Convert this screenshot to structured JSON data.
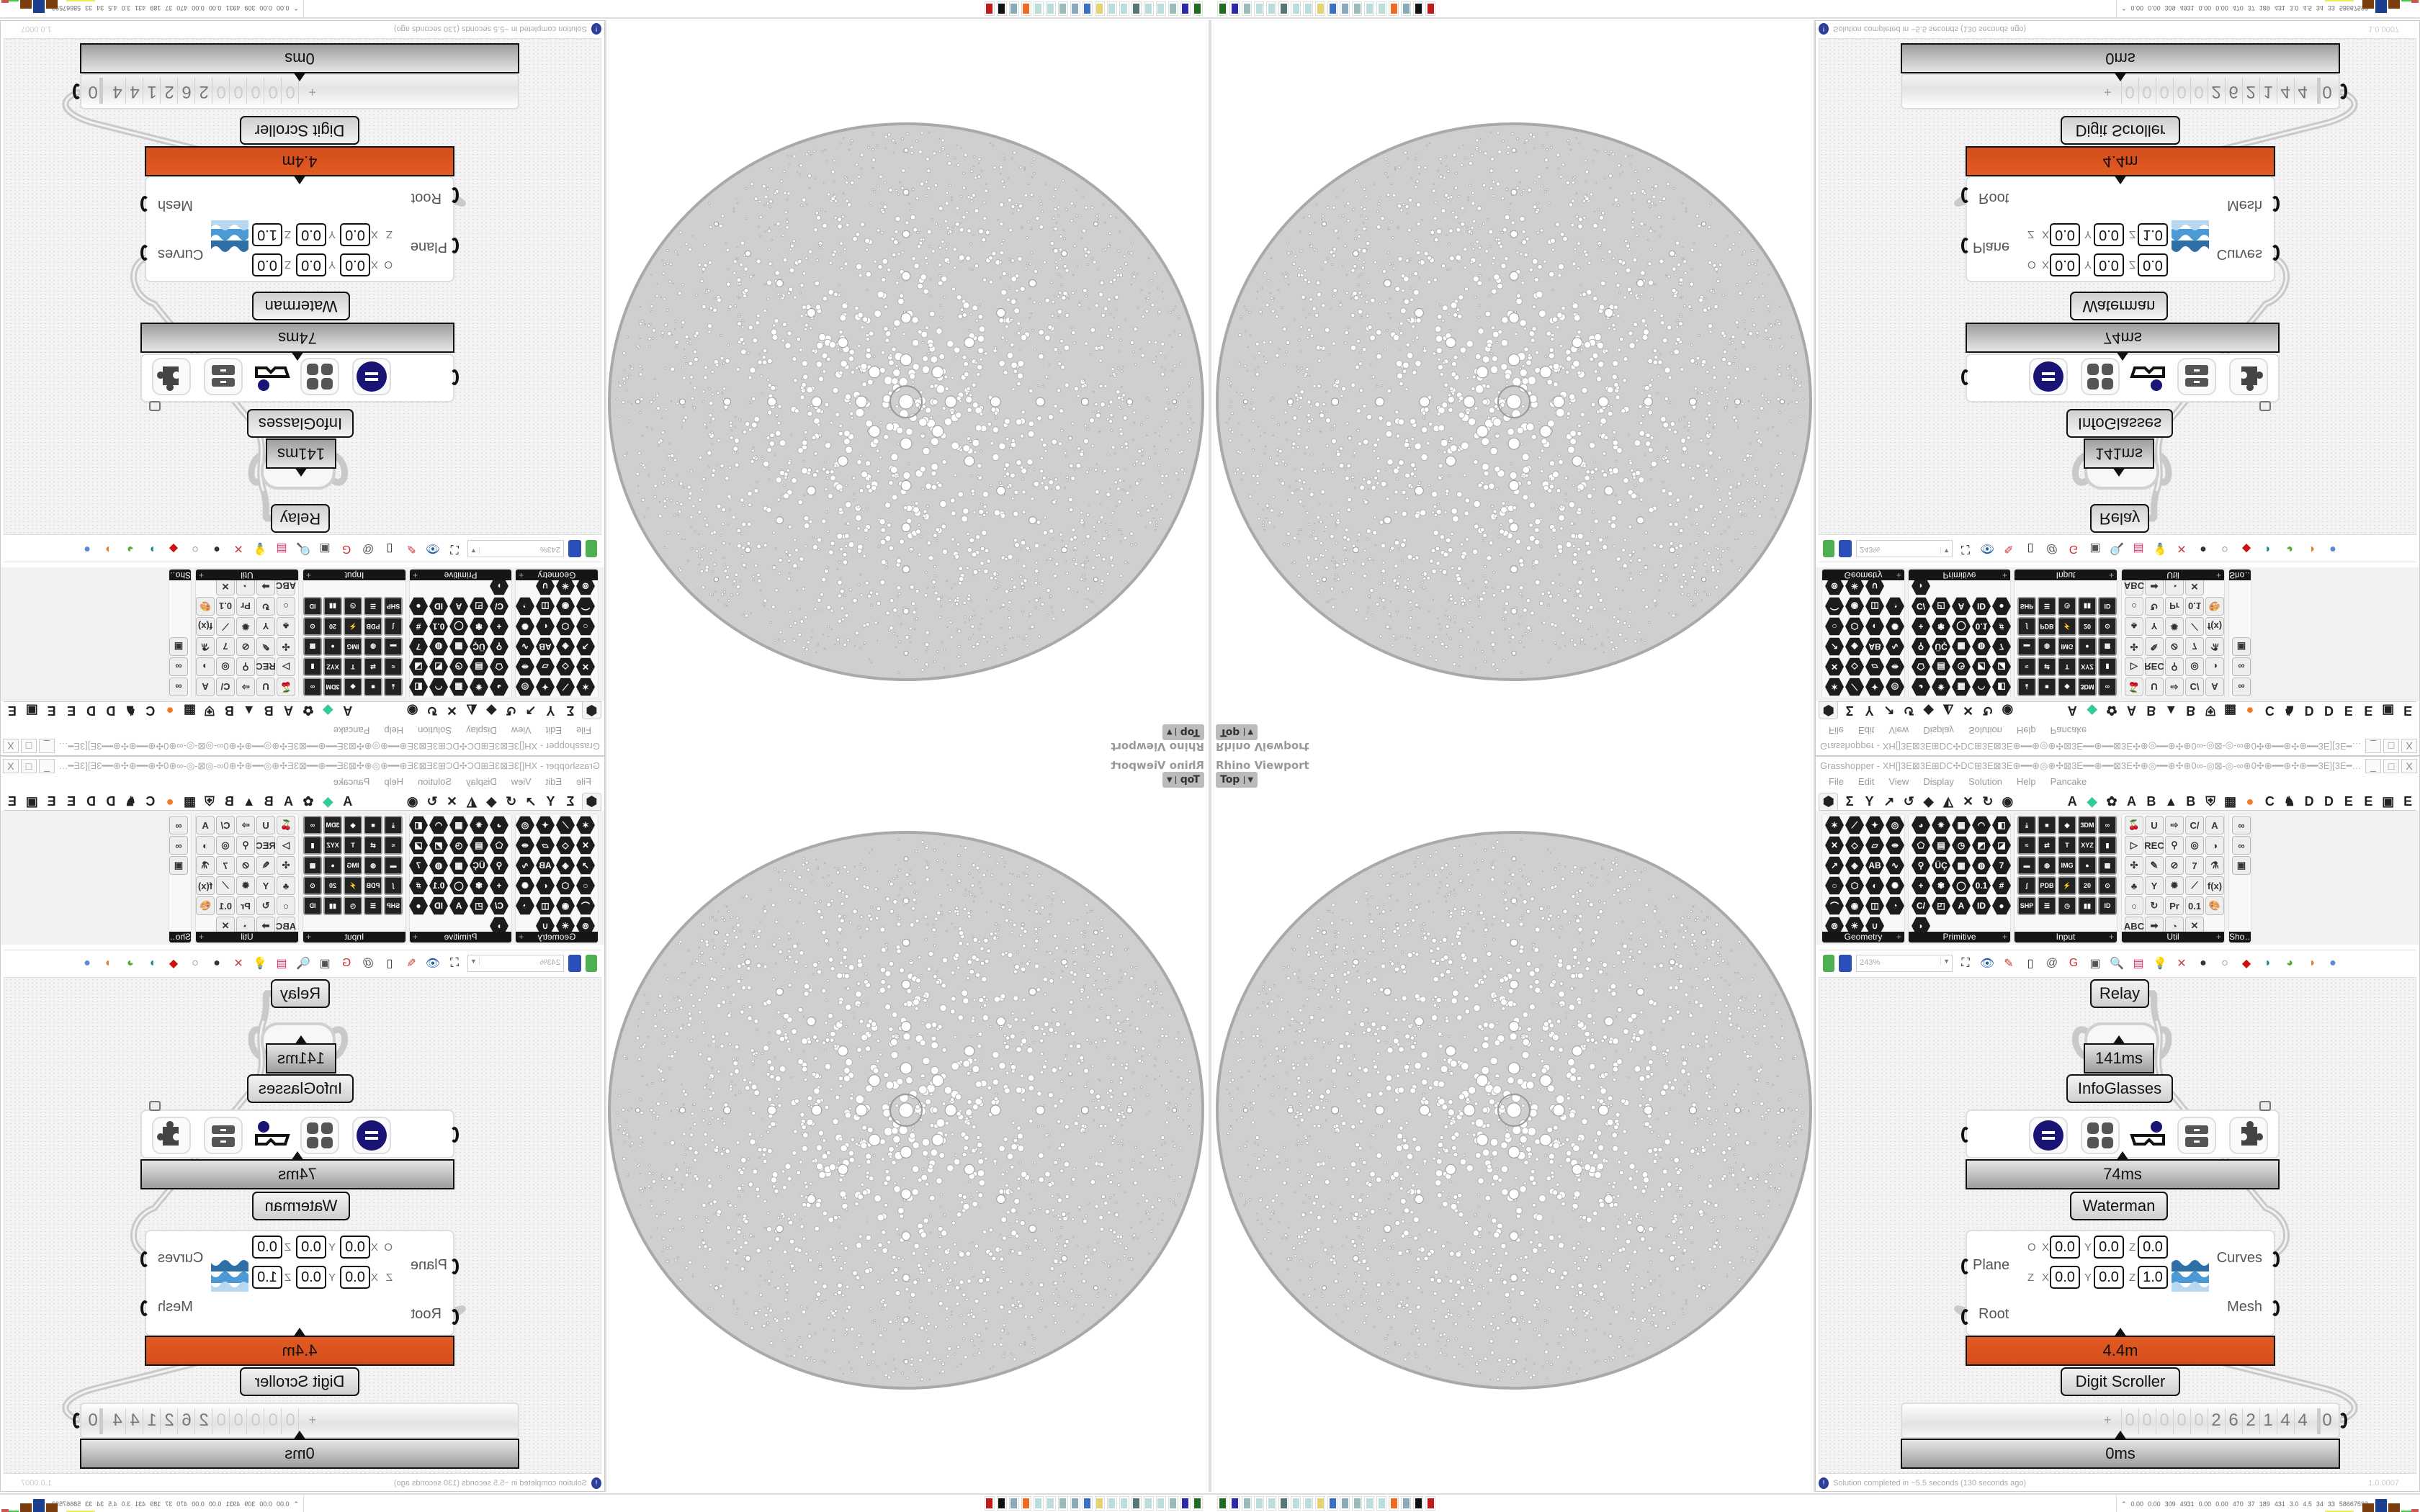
{
  "viewport": {
    "label": "Rhino Viewport",
    "view": "Top",
    "geometry": "waterman-sphere-curves",
    "line_color": "#a9a9a9"
  },
  "gh": {
    "title": "Grasshopper - XH[]3E⊠3E⊞DC✣DC⊞3E⊠3E⊕━━⊕◎⊕✣⊠3E━━⊕━━⊠3E✣⊕◎━━⊕✣⊕0∞-◎⊠-◎-∞⊕0✣⊕━━⊕✣⊕━━3E][3E━━⊕✣⊕━━⊕✣⊕0∞-◎⊠-◎-∞⊕0✣⊕━━◎⊕✣⊠3E━━⊕…",
    "window_buttons": [
      "_",
      "□",
      "X"
    ],
    "menu": [
      "File",
      "Edit",
      "View",
      "Display",
      "Solution",
      "Help",
      "Pancake"
    ],
    "tabs_icons": [
      "params-hexagon-icon",
      "maths-sigma-icon",
      "sets-tree-icon",
      "vector-arrow-icon",
      "curve-hook-icon",
      "surface-icon",
      "mesh-icon",
      "intersect-icon",
      "transform-icon",
      "display-eye-icon"
    ],
    "tabs_plugins": [
      "A",
      "◆",
      "✿",
      "A",
      "B",
      "▲",
      "B",
      "⛨",
      "▦",
      "●",
      "C",
      "♞",
      "D",
      "D",
      "E",
      "E",
      "▣",
      "E"
    ],
    "panels": [
      {
        "label": "Geometry",
        "style": "hex",
        "icons": [
          "✶",
          "⟋",
          "✦",
          "◎",
          "✕",
          "◇",
          "▱",
          "⇹",
          "↗",
          "◈",
          "AB",
          "∿",
          "○",
          "⬡",
          "◐",
          "✺",
          "⌒",
          "◉",
          "◫",
          "◔",
          "⊚",
          "✳",
          "∪"
        ]
      },
      {
        "label": "Primitive",
        "style": "hex",
        "icons": [
          "◕",
          "✷",
          "▦",
          "◠",
          "◧",
          "⬠",
          "▤",
          "◷",
          "◩",
          "◪",
          "⚲",
          "ÜÇ",
          "▩",
          "◍",
          "7",
          "+",
          "✾",
          "◯",
          "0.1",
          "#",
          "C/",
          "◰",
          "A",
          "ID",
          "●",
          "◗"
        ]
      },
      {
        "label": "Input",
        "style": "box",
        "icons": [
          "⤓",
          "■",
          "◆",
          "3DM",
          "∞",
          "≈",
          "⇄",
          "T",
          "XYZ",
          "▮",
          "▬",
          "◍",
          "IMG",
          "●",
          "▩",
          "∫",
          "PDB",
          "⚡",
          "20",
          "⊙",
          "SHP",
          "☰",
          "◷",
          "▮▮",
          "ID"
        ]
      },
      {
        "label": "Util",
        "style": "util",
        "icons": [
          "🍒",
          "U",
          "⇨",
          "C/",
          "A",
          "▷",
          "REC",
          "⚲",
          "◎",
          "◑",
          "✣",
          "✎",
          "⊘",
          "7",
          "⚗",
          "♣",
          "Y",
          "✹",
          "⟋",
          "f(x)",
          "○",
          "↻",
          "Pr",
          "0.1",
          "🎨",
          "ABC",
          "➡",
          "◔",
          "✕"
        ]
      },
      {
        "label": "Sho…",
        "style": "util",
        "icons": [
          "∞",
          "∞",
          "▣"
        ]
      }
    ],
    "toolbar": {
      "left": [
        "new-file-icon",
        "save-icon"
      ],
      "zoom": "243%",
      "right": [
        "zoom-extents-icon",
        "preview-eye-icon",
        "sketch-icon",
        "plugin-icon",
        "at-icon",
        "gha-icon",
        "window-icon",
        "search-icon",
        "package-icon",
        "bulb-icon",
        "dna-icon",
        "shaded-preview-icon",
        "wireframe-icon",
        "red-shaded-icon",
        "teal-icon",
        "green-icon",
        "orange-sphere-icon",
        "blue-sphere-icon"
      ]
    },
    "canvas": {
      "relay": {
        "name": "Relay",
        "time": "141ms"
      },
      "infoglasses": {
        "name": "InfoGlasses",
        "time": "74ms",
        "icons": [
          "equals-circle-icon",
          "grid-icon",
          "glasses-icon",
          "drawer-icon",
          "puzzle-icon"
        ]
      },
      "waterman": {
        "name": "Waterman",
        "time": "4.4m",
        "inputs": [
          "Plane",
          "Root"
        ],
        "outputs": [
          "Curves",
          "Mesh"
        ],
        "origin_label": "O",
        "z_label": "Z",
        "origin": {
          "x": "0.0",
          "y": "0.0",
          "z": "0.0"
        },
        "zaxis": {
          "x": "0.0",
          "y": "0.0",
          "z": "1.0"
        },
        "axis_labels": [
          "X",
          "Y",
          "Z"
        ]
      },
      "digit_scroller": {
        "name": "Digit Scroller",
        "time": "0ms",
        "sign": "+",
        "digits": [
          "0",
          "0",
          "0",
          "0",
          "0",
          "2",
          "6",
          "2",
          "1",
          "4",
          "4"
        ],
        "decimal": "0"
      },
      "time_bar_color": "#d24e1c"
    },
    "status": {
      "message": "Solution completed in ~5.5 seconds (130 seconds ago)",
      "version": "1.0.0007"
    }
  },
  "taskbar": {
    "icons": [
      "#1f6b1f",
      "#2a2aa8",
      "#9bb",
      "#bdd",
      "#bdd",
      "#577",
      "#bdd",
      "#bdd",
      "#e6d370",
      "#3a6fc2",
      "#8ab",
      "#9bb",
      "#bdd",
      "#bdd",
      "#ef6a1c",
      "#8ab",
      "#111",
      "#c21818"
    ],
    "stats": [
      "0.00",
      "0.00",
      "309",
      "4931",
      "0.00",
      "0.00",
      "470",
      "37",
      "189",
      "431",
      "3.0",
      "4.5",
      "34",
      "33",
      "58667592"
    ]
  }
}
